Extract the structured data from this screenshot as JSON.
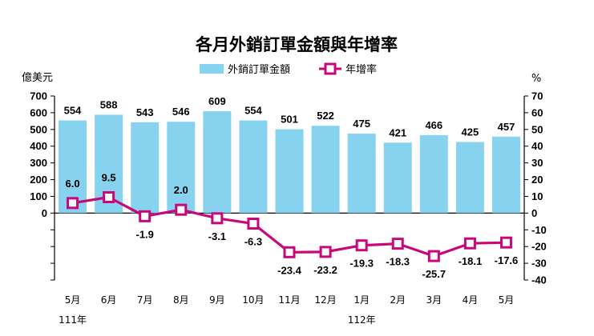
{
  "chart_data": {
    "type": "bar",
    "title": "各月外銷訂單金額與年增率",
    "categories": [
      "5月",
      "6月",
      "7月",
      "8月",
      "9月",
      "10月",
      "11月",
      "12月",
      "1月",
      "2月",
      "3月",
      "4月",
      "5月"
    ],
    "year_labels": [
      {
        "label": "111年",
        "category_index": 0
      },
      {
        "label": "112年",
        "category_index": 8
      }
    ],
    "left_axis": {
      "unit": "億美元",
      "ylim": [
        -400,
        700
      ],
      "ticks": [
        "700",
        "600",
        "500",
        "400",
        "300",
        "200",
        "100",
        "0"
      ]
    },
    "right_axis": {
      "unit": "%",
      "ylim": [
        -40,
        70
      ],
      "ticks": [
        "70",
        "60",
        "50",
        "40",
        "30",
        "20",
        "10",
        "0",
        "-10",
        "-20",
        "-30",
        "-40"
      ]
    },
    "series": [
      {
        "name": "外銷訂單金額",
        "type": "bar",
        "axis": "left",
        "color": "#87d3ef",
        "values": [
          554,
          588,
          543,
          546,
          609,
          554,
          501,
          522,
          475,
          421,
          466,
          425,
          457
        ],
        "labels": [
          "554",
          "588",
          "543",
          "546",
          "609",
          "554",
          "501",
          "522",
          "475",
          "421",
          "466",
          "425",
          "457"
        ]
      },
      {
        "name": "年增率",
        "type": "line",
        "axis": "right",
        "color": "#c8087a",
        "values": [
          6.0,
          9.5,
          -1.9,
          2.0,
          -3.1,
          -6.3,
          -23.4,
          -23.2,
          -19.3,
          -18.3,
          -25.7,
          -18.1,
          -17.6
        ],
        "labels": [
          "6.0",
          "9.5",
          "-1.9",
          "2.0",
          "-3.1",
          "-6.3",
          "-23.4",
          "-23.2",
          "-19.3",
          "-18.3",
          "-25.7",
          "-18.1",
          "-17.6"
        ]
      }
    ],
    "legend": {
      "placement": "top-center"
    },
    "grid": false
  }
}
